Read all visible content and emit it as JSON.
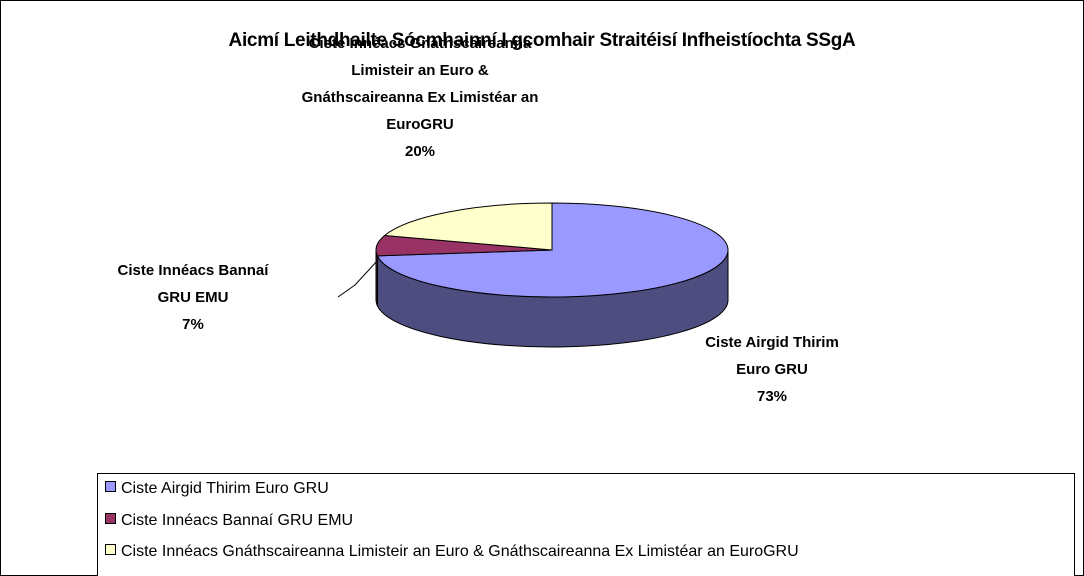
{
  "chart_data": {
    "type": "pie3d",
    "title": "Aicmí Leithdhailte Sócmhainní I gcomhair Straitéisí Infheistíochta SSgA",
    "categories": [
      "Ciste Airgid Thirim Euro GRU",
      "Ciste Innéacs Bannaí GRU EMU",
      "Ciste Innéacs Gnáthscaireanna Limisteir an Euro & Gnáthscaireanna Ex Limistéar an EuroGRU"
    ],
    "values": [
      73,
      7,
      20
    ],
    "value_labels": [
      "73%",
      "7%",
      "20%"
    ],
    "colors": [
      "#9999ff",
      "#993366",
      "#ffffcc"
    ],
    "legend": "bottom"
  }
}
